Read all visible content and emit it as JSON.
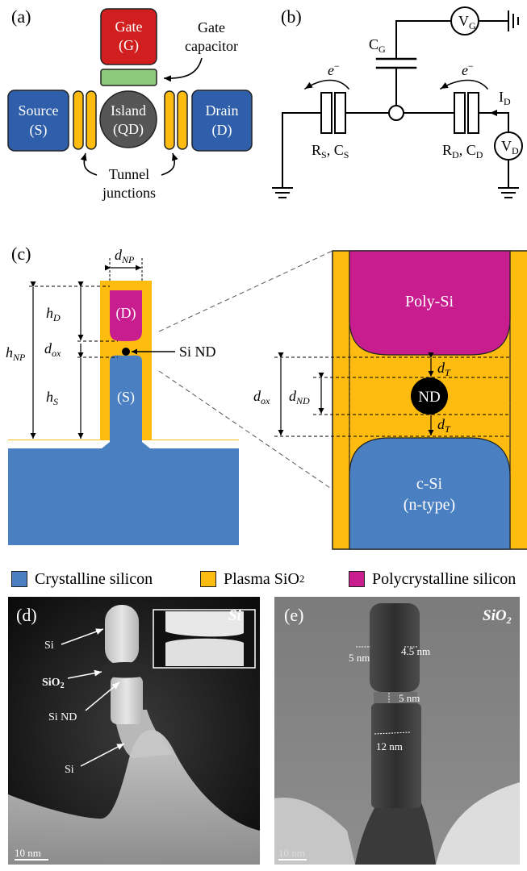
{
  "panels": {
    "a": {
      "label": "(a)",
      "gate": {
        "name": "Gate",
        "abbr": "(G)"
      },
      "source": {
        "name": "Source",
        "abbr": "(S)"
      },
      "island": {
        "name": "Island",
        "abbr": "(QD)"
      },
      "drain": {
        "name": "Drain",
        "abbr": "(D)"
      },
      "gate_capacitor": {
        "line1": "Gate",
        "line2": "capacitor"
      },
      "tunnel_junctions": {
        "line1": "Tunnel",
        "line2": "junctions"
      }
    },
    "b": {
      "label": "(b)",
      "vg": {
        "main": "V",
        "sub": "G"
      },
      "cg": {
        "main": "C",
        "sub": "G"
      },
      "electron_left": {
        "main": "e",
        "sup": "−"
      },
      "electron_right": {
        "main": "e",
        "sup": "−"
      },
      "id": {
        "main": "I",
        "sub": "D"
      },
      "rs_cs": {
        "r": "R",
        "rsub": "S",
        "c": "C",
        "csub": "S"
      },
      "rd_cd": {
        "r": "R",
        "rsub": "D",
        "c": "C",
        "csub": "D"
      },
      "vd": {
        "main": "V",
        "sub": "D"
      }
    },
    "c": {
      "label": "(c)",
      "d_np": {
        "main": "d",
        "sub": "NP"
      },
      "h_d": {
        "main": "h",
        "sub": "D"
      },
      "h_np": {
        "main": "h",
        "sub": "NP"
      },
      "d_ox": {
        "main": "d",
        "sub": "ox"
      },
      "h_s": {
        "main": "h",
        "sub": "S"
      },
      "drain_label": "(D)",
      "source_label": "(S)",
      "si_nd": "Si ND",
      "poly_si": "Poly-Si",
      "nd": "ND",
      "d_t_top": {
        "main": "d",
        "sub": "T"
      },
      "d_t_bottom": {
        "main": "d",
        "sub": "T"
      },
      "d_ox_zoom": {
        "main": "d",
        "sub": "ox"
      },
      "d_nd": {
        "main": "d",
        "sub": "ND"
      },
      "c_si": {
        "line1": "c-Si",
        "line2": "(n-type)"
      }
    },
    "legend": [
      {
        "label": "Crystalline silicon",
        "color": "#4a7fc1"
      },
      {
        "label": "Plasma SiO",
        "sub": "2",
        "color": "#fdbc0f"
      },
      {
        "label": "Polycrystalline silicon",
        "color": "#c81d8e"
      }
    ],
    "d": {
      "label": "(d)",
      "tag": "Si",
      "si_top": "Si",
      "sio2": {
        "main": "SiO",
        "sub": "2"
      },
      "si_nd": "Si ND",
      "si_bottom": "Si",
      "scale": "10 nm"
    },
    "e": {
      "label": "(e)",
      "tag": {
        "main": "SiO",
        "sub": "2"
      },
      "m1": "5 nm",
      "m2": "4.5 nm",
      "m3": "5 nm",
      "m4": "12 nm",
      "scale": "10 nm"
    }
  },
  "colors": {
    "gate_red": "#d11f1f",
    "gate_capacitor_green": "#8cc97a",
    "electrode_blue": "#2f5faa",
    "island_gray": "#555555",
    "tunnel_yellow": "#fdbc0f",
    "silicon_blue": "#4a7fc1",
    "oxide_yellow": "#fdbc0f",
    "poly_magenta": "#c81d8e"
  }
}
